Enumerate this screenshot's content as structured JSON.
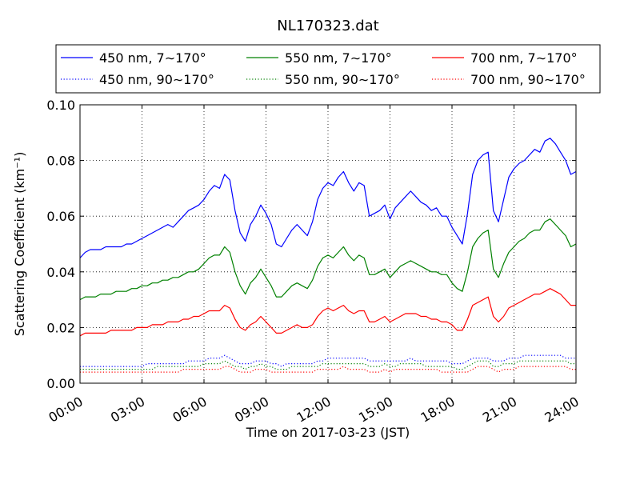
{
  "chart_data": {
    "type": "line",
    "title": "NL170323.dat",
    "xlabel": "Time on 2017-03-23 (JST)",
    "ylabel": "Scattering Coefficient (km⁻¹)",
    "xlim": [
      0,
      24
    ],
    "ylim": [
      0.0,
      0.1
    ],
    "grid": true,
    "legend_position": "top",
    "x_ticks": [
      {
        "value": 0,
        "label": "00:00"
      },
      {
        "value": 3,
        "label": "03:00"
      },
      {
        "value": 6,
        "label": "06:00"
      },
      {
        "value": 9,
        "label": "09:00"
      },
      {
        "value": 12,
        "label": "12:00"
      },
      {
        "value": 15,
        "label": "15:00"
      },
      {
        "value": 18,
        "label": "18:00"
      },
      {
        "value": 21,
        "label": "21:00"
      },
      {
        "value": 24,
        "label": "24:00"
      }
    ],
    "y_ticks": [
      {
        "value": 0.0,
        "label": "0.00"
      },
      {
        "value": 0.02,
        "label": "0.02"
      },
      {
        "value": 0.04,
        "label": "0.04"
      },
      {
        "value": 0.06,
        "label": "0.06"
      },
      {
        "value": 0.08,
        "label": "0.08"
      },
      {
        "value": 0.1,
        "label": "0.10"
      }
    ],
    "x": [
      0,
      0.25,
      0.5,
      0.75,
      1,
      1.25,
      1.5,
      1.75,
      2,
      2.25,
      2.5,
      2.75,
      3,
      3.25,
      3.5,
      3.75,
      4,
      4.25,
      4.5,
      4.75,
      5,
      5.25,
      5.5,
      5.75,
      6,
      6.25,
      6.5,
      6.75,
      7,
      7.25,
      7.5,
      7.75,
      8,
      8.25,
      8.5,
      8.75,
      9,
      9.25,
      9.5,
      9.75,
      10,
      10.25,
      10.5,
      10.75,
      11,
      11.25,
      11.5,
      11.75,
      12,
      12.25,
      12.5,
      12.75,
      13,
      13.25,
      13.5,
      13.75,
      14,
      14.25,
      14.5,
      14.75,
      15,
      15.25,
      15.5,
      15.75,
      16,
      16.25,
      16.5,
      16.75,
      17,
      17.25,
      17.5,
      17.75,
      18,
      18.25,
      18.5,
      18.75,
      19,
      19.25,
      19.5,
      19.75,
      20,
      20.25,
      20.5,
      20.75,
      21,
      21.25,
      21.5,
      21.75,
      22,
      22.25,
      22.5,
      22.75,
      23,
      23.25,
      23.5,
      23.75,
      24
    ],
    "series": [
      {
        "name": "450 nm, 7∼170°",
        "color": "#0000ff",
        "style": "solid",
        "values": [
          0.045,
          0.047,
          0.048,
          0.048,
          0.048,
          0.049,
          0.049,
          0.049,
          0.049,
          0.05,
          0.05,
          0.051,
          0.052,
          0.053,
          0.054,
          0.055,
          0.056,
          0.057,
          0.056,
          0.058,
          0.06,
          0.062,
          0.063,
          0.064,
          0.066,
          0.069,
          0.071,
          0.07,
          0.075,
          0.073,
          0.062,
          0.054,
          0.051,
          0.057,
          0.06,
          0.064,
          0.061,
          0.057,
          0.05,
          0.049,
          0.052,
          0.055,
          0.057,
          0.055,
          0.053,
          0.058,
          0.066,
          0.07,
          0.072,
          0.071,
          0.074,
          0.076,
          0.072,
          0.069,
          0.072,
          0.071,
          0.06,
          0.061,
          0.062,
          0.064,
          0.059,
          0.063,
          0.065,
          0.067,
          0.069,
          0.067,
          0.065,
          0.064,
          0.062,
          0.063,
          0.06,
          0.06,
          0.056,
          0.053,
          0.05,
          0.061,
          0.075,
          0.08,
          0.082,
          0.083,
          0.062,
          0.058,
          0.066,
          0.074,
          0.077,
          0.079,
          0.08,
          0.082,
          0.084,
          0.083,
          0.087,
          0.088,
          0.086,
          0.083,
          0.08,
          0.075,
          0.076
        ]
      },
      {
        "name": "550 nm, 7∼170°",
        "color": "#008000",
        "style": "solid",
        "values": [
          0.03,
          0.031,
          0.031,
          0.031,
          0.032,
          0.032,
          0.032,
          0.033,
          0.033,
          0.033,
          0.034,
          0.034,
          0.035,
          0.035,
          0.036,
          0.036,
          0.037,
          0.037,
          0.038,
          0.038,
          0.039,
          0.04,
          0.04,
          0.041,
          0.043,
          0.045,
          0.046,
          0.046,
          0.049,
          0.047,
          0.04,
          0.035,
          0.032,
          0.036,
          0.038,
          0.041,
          0.038,
          0.035,
          0.031,
          0.031,
          0.033,
          0.035,
          0.036,
          0.035,
          0.034,
          0.037,
          0.042,
          0.045,
          0.046,
          0.045,
          0.047,
          0.049,
          0.046,
          0.044,
          0.046,
          0.045,
          0.039,
          0.039,
          0.04,
          0.041,
          0.038,
          0.04,
          0.042,
          0.043,
          0.044,
          0.043,
          0.042,
          0.041,
          0.04,
          0.04,
          0.039,
          0.039,
          0.036,
          0.034,
          0.033,
          0.04,
          0.049,
          0.052,
          0.054,
          0.055,
          0.041,
          0.038,
          0.043,
          0.047,
          0.049,
          0.051,
          0.052,
          0.054,
          0.055,
          0.055,
          0.058,
          0.059,
          0.057,
          0.055,
          0.053,
          0.049,
          0.05
        ]
      },
      {
        "name": "700 nm, 7∼170°",
        "color": "#ff0000",
        "style": "solid",
        "values": [
          0.017,
          0.018,
          0.018,
          0.018,
          0.018,
          0.018,
          0.019,
          0.019,
          0.019,
          0.019,
          0.019,
          0.02,
          0.02,
          0.02,
          0.021,
          0.021,
          0.021,
          0.022,
          0.022,
          0.022,
          0.023,
          0.023,
          0.024,
          0.024,
          0.025,
          0.026,
          0.026,
          0.026,
          0.028,
          0.027,
          0.023,
          0.02,
          0.019,
          0.021,
          0.022,
          0.024,
          0.022,
          0.02,
          0.018,
          0.018,
          0.019,
          0.02,
          0.021,
          0.02,
          0.02,
          0.021,
          0.024,
          0.026,
          0.027,
          0.026,
          0.027,
          0.028,
          0.026,
          0.025,
          0.026,
          0.026,
          0.022,
          0.022,
          0.023,
          0.024,
          0.022,
          0.023,
          0.024,
          0.025,
          0.025,
          0.025,
          0.024,
          0.024,
          0.023,
          0.023,
          0.022,
          0.022,
          0.021,
          0.019,
          0.019,
          0.023,
          0.028,
          0.029,
          0.03,
          0.031,
          0.024,
          0.022,
          0.024,
          0.027,
          0.028,
          0.029,
          0.03,
          0.031,
          0.032,
          0.032,
          0.033,
          0.034,
          0.033,
          0.032,
          0.03,
          0.028,
          0.028
        ]
      },
      {
        "name": "450 nm, 90∼170°",
        "color": "#0000ff",
        "style": "dotted",
        "values": [
          0.006,
          0.006,
          0.006,
          0.006,
          0.006,
          0.006,
          0.006,
          0.006,
          0.006,
          0.006,
          0.006,
          0.006,
          0.006,
          0.007,
          0.007,
          0.007,
          0.007,
          0.007,
          0.007,
          0.007,
          0.007,
          0.008,
          0.008,
          0.008,
          0.008,
          0.009,
          0.009,
          0.009,
          0.01,
          0.009,
          0.008,
          0.007,
          0.007,
          0.007,
          0.008,
          0.008,
          0.008,
          0.007,
          0.007,
          0.006,
          0.007,
          0.007,
          0.007,
          0.007,
          0.007,
          0.007,
          0.008,
          0.008,
          0.009,
          0.009,
          0.009,
          0.009,
          0.009,
          0.009,
          0.009,
          0.009,
          0.008,
          0.008,
          0.008,
          0.008,
          0.008,
          0.008,
          0.008,
          0.008,
          0.009,
          0.008,
          0.008,
          0.008,
          0.008,
          0.008,
          0.008,
          0.008,
          0.007,
          0.007,
          0.007,
          0.008,
          0.009,
          0.009,
          0.009,
          0.009,
          0.008,
          0.008,
          0.008,
          0.009,
          0.009,
          0.009,
          0.01,
          0.01,
          0.01,
          0.01,
          0.01,
          0.01,
          0.01,
          0.01,
          0.009,
          0.009,
          0.009
        ]
      },
      {
        "name": "550 nm, 90∼170°",
        "color": "#008000",
        "style": "dotted",
        "values": [
          0.005,
          0.005,
          0.005,
          0.005,
          0.005,
          0.005,
          0.005,
          0.005,
          0.005,
          0.005,
          0.005,
          0.005,
          0.005,
          0.005,
          0.005,
          0.006,
          0.006,
          0.006,
          0.006,
          0.006,
          0.006,
          0.006,
          0.006,
          0.006,
          0.007,
          0.007,
          0.007,
          0.007,
          0.008,
          0.007,
          0.006,
          0.006,
          0.005,
          0.006,
          0.006,
          0.007,
          0.006,
          0.006,
          0.005,
          0.005,
          0.005,
          0.006,
          0.006,
          0.006,
          0.006,
          0.006,
          0.006,
          0.007,
          0.007,
          0.007,
          0.007,
          0.007,
          0.007,
          0.007,
          0.007,
          0.007,
          0.006,
          0.006,
          0.006,
          0.007,
          0.006,
          0.006,
          0.007,
          0.007,
          0.007,
          0.007,
          0.007,
          0.006,
          0.006,
          0.006,
          0.006,
          0.006,
          0.006,
          0.005,
          0.005,
          0.006,
          0.007,
          0.008,
          0.008,
          0.008,
          0.006,
          0.006,
          0.007,
          0.007,
          0.007,
          0.008,
          0.008,
          0.008,
          0.008,
          0.008,
          0.008,
          0.008,
          0.008,
          0.008,
          0.008,
          0.007,
          0.007
        ]
      },
      {
        "name": "700 nm, 90∼170°",
        "color": "#ff0000",
        "style": "dotted",
        "values": [
          0.004,
          0.004,
          0.004,
          0.004,
          0.004,
          0.004,
          0.004,
          0.004,
          0.004,
          0.004,
          0.004,
          0.004,
          0.004,
          0.004,
          0.004,
          0.004,
          0.004,
          0.004,
          0.004,
          0.004,
          0.005,
          0.005,
          0.005,
          0.005,
          0.005,
          0.005,
          0.005,
          0.005,
          0.006,
          0.006,
          0.005,
          0.004,
          0.004,
          0.004,
          0.005,
          0.005,
          0.005,
          0.004,
          0.004,
          0.004,
          0.004,
          0.004,
          0.004,
          0.004,
          0.004,
          0.004,
          0.005,
          0.005,
          0.005,
          0.005,
          0.005,
          0.006,
          0.005,
          0.005,
          0.005,
          0.005,
          0.004,
          0.004,
          0.004,
          0.005,
          0.004,
          0.005,
          0.005,
          0.005,
          0.005,
          0.005,
          0.005,
          0.005,
          0.005,
          0.005,
          0.004,
          0.004,
          0.004,
          0.004,
          0.004,
          0.004,
          0.005,
          0.006,
          0.006,
          0.006,
          0.005,
          0.004,
          0.005,
          0.005,
          0.005,
          0.006,
          0.006,
          0.006,
          0.006,
          0.006,
          0.006,
          0.006,
          0.006,
          0.006,
          0.006,
          0.005,
          0.005
        ]
      }
    ]
  }
}
